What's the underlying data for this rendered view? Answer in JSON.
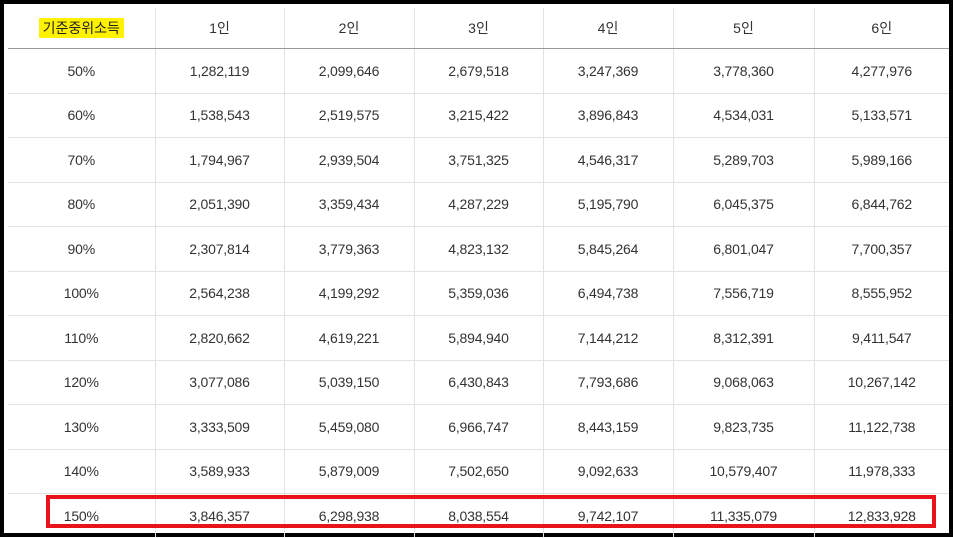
{
  "table": {
    "header": [
      "기준중위소득",
      "1인",
      "2인",
      "3인",
      "4인",
      "5인",
      "6인"
    ],
    "rows": [
      [
        "50%",
        "1,282,119",
        "2,099,646",
        "2,679,518",
        "3,247,369",
        "3,778,360",
        "4,277,976"
      ],
      [
        "60%",
        "1,538,543",
        "2,519,575",
        "3,215,422",
        "3,896,843",
        "4,534,031",
        "5,133,571"
      ],
      [
        "70%",
        "1,794,967",
        "2,939,504",
        "3,751,325",
        "4,546,317",
        "5,289,703",
        "5,989,166"
      ],
      [
        "80%",
        "2,051,390",
        "3,359,434",
        "4,287,229",
        "5,195,790",
        "6,045,375",
        "6,844,762"
      ],
      [
        "90%",
        "2,307,814",
        "3,779,363",
        "4,823,132",
        "5,845,264",
        "6,801,047",
        "7,700,357"
      ],
      [
        "100%",
        "2,564,238",
        "4,199,292",
        "5,359,036",
        "6,494,738",
        "7,556,719",
        "8,555,952"
      ],
      [
        "110%",
        "2,820,662",
        "4,619,221",
        "5,894,940",
        "7,144,212",
        "8,312,391",
        "9,411,547"
      ],
      [
        "120%",
        "3,077,086",
        "5,039,150",
        "6,430,843",
        "7,793,686",
        "9,068,063",
        "10,267,142"
      ],
      [
        "130%",
        "3,333,509",
        "5,459,080",
        "6,966,747",
        "8,443,159",
        "9,823,735",
        "11,122,738"
      ],
      [
        "140%",
        "3,589,933",
        "5,879,009",
        "7,502,650",
        "9,092,633",
        "10,579,407",
        "11,978,333"
      ],
      [
        "150%",
        "3,846,357",
        "6,298,938",
        "8,038,554",
        "9,742,107",
        "11,335,079",
        "12,833,928"
      ]
    ]
  },
  "colors": {
    "header_highlight": "#fff200",
    "row_highlight_border": "#e8131b",
    "frame_border": "#000000"
  }
}
